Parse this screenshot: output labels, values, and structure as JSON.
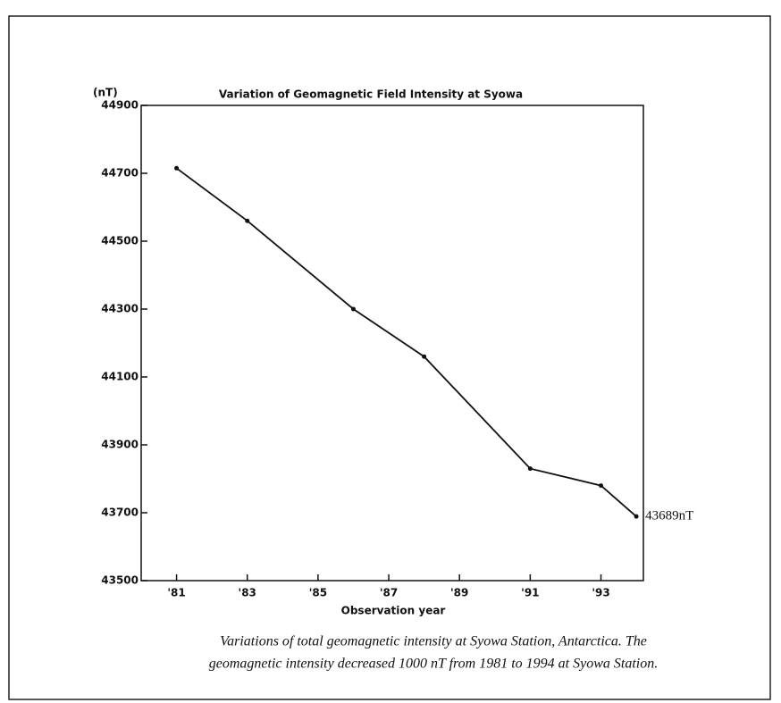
{
  "chart_data": {
    "type": "line",
    "title": "Variation of Geomagnetic Field Intensity at Syowa",
    "y_unit": "(nT)",
    "xlabel": "Observation year",
    "x": [
      81,
      83,
      86,
      88,
      91,
      93,
      94
    ],
    "series": [
      {
        "name": "Total geomagnetic intensity",
        "color": "#111111",
        "values": [
          44715,
          44560,
          44300,
          44160,
          43830,
          43780,
          43689
        ]
      }
    ],
    "annotation": "43689nT",
    "xlim": [
      80,
      94.2
    ],
    "xticks": [
      {
        "value": 81,
        "label": "'81"
      },
      {
        "value": 83,
        "label": "'83"
      },
      {
        "value": 85,
        "label": "'85"
      },
      {
        "value": 87,
        "label": "'87"
      },
      {
        "value": 89,
        "label": "'89"
      },
      {
        "value": 91,
        "label": "'91"
      },
      {
        "value": 93,
        "label": "'93"
      }
    ],
    "ylim": [
      43500,
      44900
    ],
    "yticks": [
      43500,
      43700,
      43900,
      44100,
      44300,
      44500,
      44700,
      44900
    ],
    "caption_lines": [
      "Variations of total geomagnetic intensity at Syowa Station, Antarctica. The",
      "geomagnetic intensity decreased 1000 nT from 1981 to 1994 at Syowa Station."
    ]
  }
}
